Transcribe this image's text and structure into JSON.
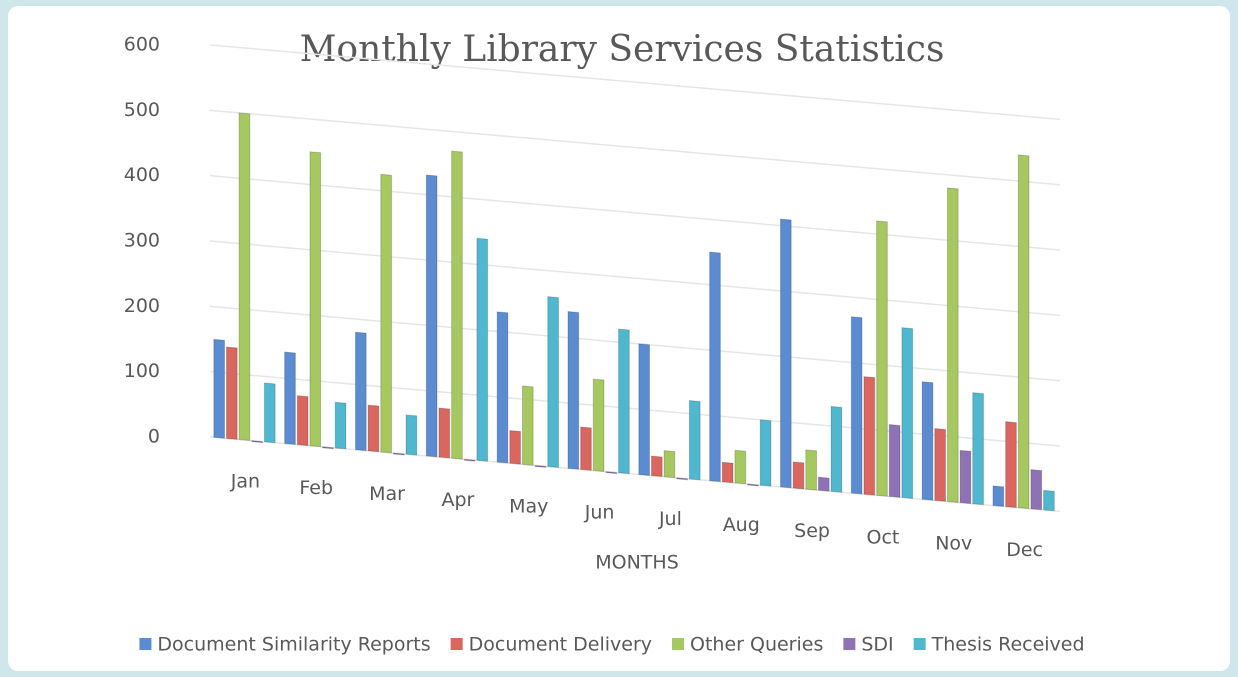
{
  "chart_data": {
    "type": "bar",
    "title": "Monthly Library Services Statistics",
    "x_label": "MONTHS",
    "categories": [
      "Jan",
      "Feb",
      "Mar",
      "Apr",
      "May",
      "Jun",
      "Jul",
      "Aug",
      "Sep",
      "Oct",
      "Nov",
      "Dec"
    ],
    "series": [
      {
        "name": "Document Similarity Reports",
        "color": "#5b8bd0",
        "values": [
          150,
          140,
          180,
          430,
          230,
          240,
          200,
          350,
          410,
          270,
          180,
          30
        ]
      },
      {
        "name": "Document Delivery",
        "color": "#d9675f",
        "values": [
          140,
          75,
          70,
          75,
          50,
          65,
          30,
          30,
          40,
          180,
          110,
          130
        ]
      },
      {
        "name": "Other Queries",
        "color": "#a6c860",
        "values": [
          500,
          450,
          425,
          470,
          120,
          140,
          40,
          50,
          60,
          420,
          480,
          540
        ]
      },
      {
        "name": "SDI",
        "color": "#8e72b3",
        "values": [
          0,
          0,
          0,
          0,
          0,
          0,
          0,
          0,
          20,
          110,
          80,
          60
        ]
      },
      {
        "name": "Thesis Received",
        "color": "#4fb8cf",
        "values": [
          90,
          70,
          60,
          340,
          260,
          220,
          120,
          100,
          130,
          260,
          170,
          30
        ]
      }
    ],
    "ylim": [
      0,
      600
    ],
    "yticks": [
      0,
      100,
      200,
      300,
      400,
      500,
      600
    ],
    "grid": true,
    "legend": "bottom"
  }
}
